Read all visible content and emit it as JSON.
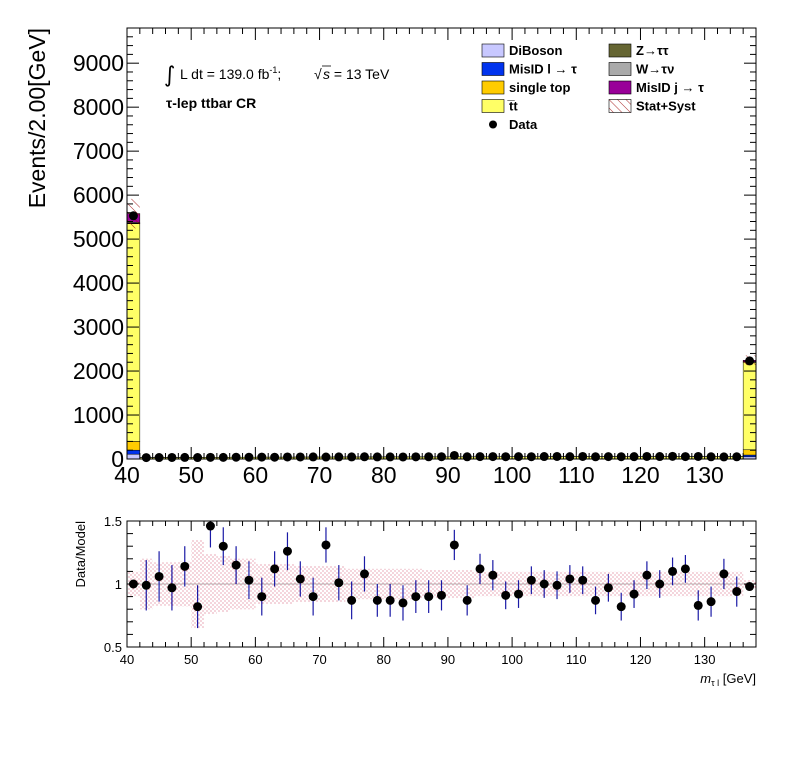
{
  "chart_data": [
    {
      "type": "bar",
      "subtype": "stacked-histogram",
      "ylabel": "Events/2.00[GeV]",
      "annotation": {
        "lumi_prefix": "L dt = 139.0 fb",
        "lumi_sup": "-1",
        "lumi_sep": ";",
        "sqrt_s": "s",
        "energy": " = 13 TeV",
        "region": "τ-lep ttbar CR"
      },
      "xlim": [
        40,
        138
      ],
      "ylim": [
        0,
        9800
      ],
      "xticks": [
        "40",
        "50",
        "60",
        "70",
        "80",
        "90",
        "100",
        "110",
        "120",
        "130"
      ],
      "yticks": [
        "0",
        "1000",
        "2000",
        "3000",
        "4000",
        "5000",
        "6000",
        "7000",
        "8000",
        "9000"
      ],
      "bins_low_edge": [
        40,
        42,
        44,
        46,
        48,
        50,
        52,
        54,
        56,
        58,
        60,
        62,
        64,
        66,
        68,
        70,
        72,
        74,
        76,
        78,
        80,
        82,
        84,
        86,
        88,
        90,
        92,
        94,
        96,
        98,
        100,
        102,
        104,
        106,
        108,
        110,
        112,
        114,
        116,
        118,
        120,
        122,
        124,
        126,
        128,
        130,
        132,
        134,
        136
      ],
      "series": [
        {
          "name": "DiBoson",
          "color": "#c8c8ff",
          "values": [
            110,
            0,
            0,
            0,
            0,
            0,
            0,
            0,
            0,
            0,
            0,
            0,
            0,
            0,
            0,
            0,
            0,
            0,
            0,
            0,
            0,
            0,
            0,
            0,
            0,
            0,
            0,
            0,
            0,
            0,
            0,
            0,
            0,
            0,
            0,
            0,
            0,
            0,
            0,
            0,
            0,
            0,
            0,
            0,
            0,
            0,
            0,
            0,
            50
          ]
        },
        {
          "name": "MisID l → τ",
          "color": "#0033ee",
          "values": [
            90,
            1,
            1,
            1,
            1,
            1,
            1,
            1,
            1,
            1,
            1,
            1,
            1,
            1,
            1,
            1,
            1,
            1,
            1,
            1,
            1,
            1,
            1,
            1,
            1,
            1,
            1,
            1,
            1,
            1,
            1,
            1,
            1,
            1,
            1,
            1,
            1,
            1,
            1,
            1,
            1,
            1,
            1,
            1,
            1,
            1,
            1,
            1,
            40
          ]
        },
        {
          "name": "single top",
          "color": "#ffcc00",
          "values": [
            200,
            3,
            3,
            3,
            3,
            3,
            3,
            3,
            3,
            3,
            3,
            3,
            3,
            3,
            3,
            3,
            3,
            3,
            3,
            3,
            3,
            3,
            3,
            3,
            3,
            3,
            3,
            3,
            3,
            3,
            3,
            3,
            3,
            3,
            3,
            3,
            3,
            3,
            3,
            3,
            3,
            3,
            3,
            3,
            3,
            3,
            3,
            3,
            120
          ]
        },
        {
          "name": "t̅t",
          "color": "#ffff66",
          "values": [
            4950,
            28,
            30,
            30,
            32,
            32,
            34,
            34,
            36,
            36,
            38,
            38,
            38,
            40,
            40,
            40,
            42,
            42,
            42,
            42,
            44,
            44,
            44,
            44,
            44,
            46,
            46,
            46,
            46,
            48,
            48,
            48,
            48,
            50,
            50,
            50,
            50,
            50,
            50,
            50,
            50,
            50,
            50,
            50,
            50,
            50,
            50,
            50,
            1990
          ]
        },
        {
          "name": "Z→ττ",
          "color": "#666633",
          "values": [
            10,
            0,
            0,
            0,
            0,
            0,
            0,
            0,
            0,
            0,
            0,
            0,
            0,
            0,
            0,
            0,
            0,
            0,
            0,
            0,
            0,
            0,
            0,
            0,
            0,
            0,
            0,
            0,
            0,
            0,
            0,
            0,
            0,
            0,
            0,
            0,
            0,
            0,
            0,
            0,
            0,
            0,
            0,
            0,
            0,
            0,
            0,
            0,
            5
          ]
        },
        {
          "name": "W→τν",
          "color": "#aaaaaa",
          "values": [
            20,
            0,
            0,
            0,
            0,
            0,
            0,
            0,
            0,
            0,
            0,
            0,
            0,
            0,
            0,
            0,
            0,
            0,
            0,
            0,
            0,
            0,
            0,
            0,
            0,
            0,
            0,
            0,
            0,
            0,
            0,
            0,
            0,
            0,
            0,
            0,
            0,
            0,
            0,
            0,
            0,
            0,
            0,
            0,
            0,
            0,
            0,
            0,
            10
          ]
        },
        {
          "name": "MisID j → τ",
          "color": "#990099",
          "values": [
            200,
            1,
            1,
            1,
            1,
            1,
            1,
            1,
            1,
            1,
            1,
            1,
            1,
            1,
            1,
            1,
            1,
            1,
            1,
            1,
            1,
            1,
            1,
            1,
            1,
            1,
            1,
            1,
            1,
            1,
            1,
            1,
            1,
            1,
            1,
            1,
            1,
            1,
            1,
            1,
            1,
            1,
            1,
            1,
            1,
            1,
            1,
            1,
            30
          ]
        }
      ],
      "data": {
        "name": "Data",
        "values": [
          5530,
          32,
          33,
          35,
          36,
          33,
          38,
          37,
          40,
          41,
          43,
          40,
          46,
          46,
          47,
          45,
          47,
          48,
          50,
          48,
          47,
          46,
          49,
          50,
          52,
          80,
          50,
          55,
          55,
          52,
          54,
          52,
          56,
          58,
          54,
          57,
          50,
          54,
          52,
          53,
          58,
          56,
          60,
          55,
          57,
          50,
          48,
          50,
          2230
        ]
      },
      "uncertainty": {
        "name": "Stat+Syst",
        "color": "#990000"
      },
      "legend": [
        {
          "key": "DiBoson",
          "label": "DiBoson",
          "symbol": "box",
          "color": "#c8c8ff"
        },
        {
          "key": "zt",
          "label": "Z→ττ",
          "symbol": "box",
          "color": "#666633"
        },
        {
          "key": "misidl",
          "label": "MisID l  →  τ",
          "symbol": "box",
          "color": "#0033ee"
        },
        {
          "key": "wt",
          "label": "W→τν",
          "symbol": "box",
          "color": "#aaaaaa"
        },
        {
          "key": "st",
          "label": "single top",
          "symbol": "box",
          "color": "#ffcc00"
        },
        {
          "key": "misidj",
          "label": "MisID j  →  τ",
          "symbol": "box",
          "color": "#990099"
        },
        {
          "key": "tt",
          "label": "t̅t",
          "symbol": "box",
          "color": "#ffff66"
        },
        {
          "key": "unc",
          "label": "Stat+Syst",
          "symbol": "hatch",
          "color": "#990000"
        },
        {
          "key": "data",
          "label": "Data",
          "symbol": "dot",
          "color": "#000000"
        }
      ]
    },
    {
      "type": "scatter",
      "subtype": "ratio",
      "ylabel": "Data/Model",
      "xlabel_var": "m",
      "xlabel_sub": "τ l",
      "xlabel_unit": " [GeV]",
      "xlim": [
        40,
        138
      ],
      "ylim": [
        0.5,
        1.5
      ],
      "xticks": [
        "40",
        "50",
        "60",
        "70",
        "80",
        "90",
        "100",
        "110",
        "120",
        "130"
      ],
      "yticks": [
        "0.5",
        "1",
        "1.5"
      ],
      "x": [
        41,
        43,
        45,
        47,
        49,
        51,
        53,
        55,
        57,
        59,
        61,
        63,
        65,
        67,
        69,
        71,
        73,
        75,
        77,
        79,
        81,
        83,
        85,
        87,
        89,
        91,
        93,
        95,
        97,
        99,
        101,
        103,
        105,
        107,
        109,
        111,
        113,
        115,
        117,
        119,
        121,
        123,
        125,
        127,
        129,
        131,
        133,
        135,
        137
      ],
      "values": [
        1.0,
        0.99,
        1.06,
        0.97,
        1.14,
        0.82,
        1.46,
        1.3,
        1.15,
        1.03,
        0.9,
        1.12,
        1.26,
        1.04,
        0.9,
        1.31,
        1.01,
        0.87,
        1.08,
        0.87,
        0.87,
        0.85,
        0.9,
        0.9,
        0.91,
        1.31,
        0.87,
        1.12,
        1.07,
        0.91,
        0.92,
        1.03,
        1.0,
        0.99,
        1.04,
        1.03,
        0.87,
        0.97,
        0.82,
        0.92,
        1.07,
        1.0,
        1.1,
        1.12,
        0.83,
        0.86,
        1.08,
        0.94,
        0.98
      ],
      "errors": [
        0.02,
        0.2,
        0.2,
        0.18,
        0.16,
        0.17,
        0.17,
        0.15,
        0.15,
        0.15,
        0.15,
        0.14,
        0.15,
        0.14,
        0.15,
        0.14,
        0.14,
        0.15,
        0.14,
        0.13,
        0.13,
        0.14,
        0.13,
        0.13,
        0.12,
        0.12,
        0.12,
        0.12,
        0.12,
        0.11,
        0.11,
        0.11,
        0.11,
        0.11,
        0.11,
        0.11,
        0.11,
        0.11,
        0.11,
        0.11,
        0.11,
        0.11,
        0.11,
        0.11,
        0.12,
        0.12,
        0.12,
        0.12,
        0.03
      ],
      "band": [
        0.1,
        0.2,
        0.17,
        0.17,
        0.18,
        0.35,
        0.24,
        0.22,
        0.2,
        0.2,
        0.16,
        0.16,
        0.16,
        0.14,
        0.14,
        0.14,
        0.14,
        0.12,
        0.12,
        0.12,
        0.12,
        0.12,
        0.12,
        0.11,
        0.11,
        0.11,
        0.11,
        0.1,
        0.1,
        0.1,
        0.1,
        0.1,
        0.1,
        0.1,
        0.1,
        0.1,
        0.1,
        0.1,
        0.1,
        0.1,
        0.1,
        0.1,
        0.1,
        0.1,
        0.1,
        0.1,
        0.1,
        0.1,
        0.03
      ]
    }
  ]
}
